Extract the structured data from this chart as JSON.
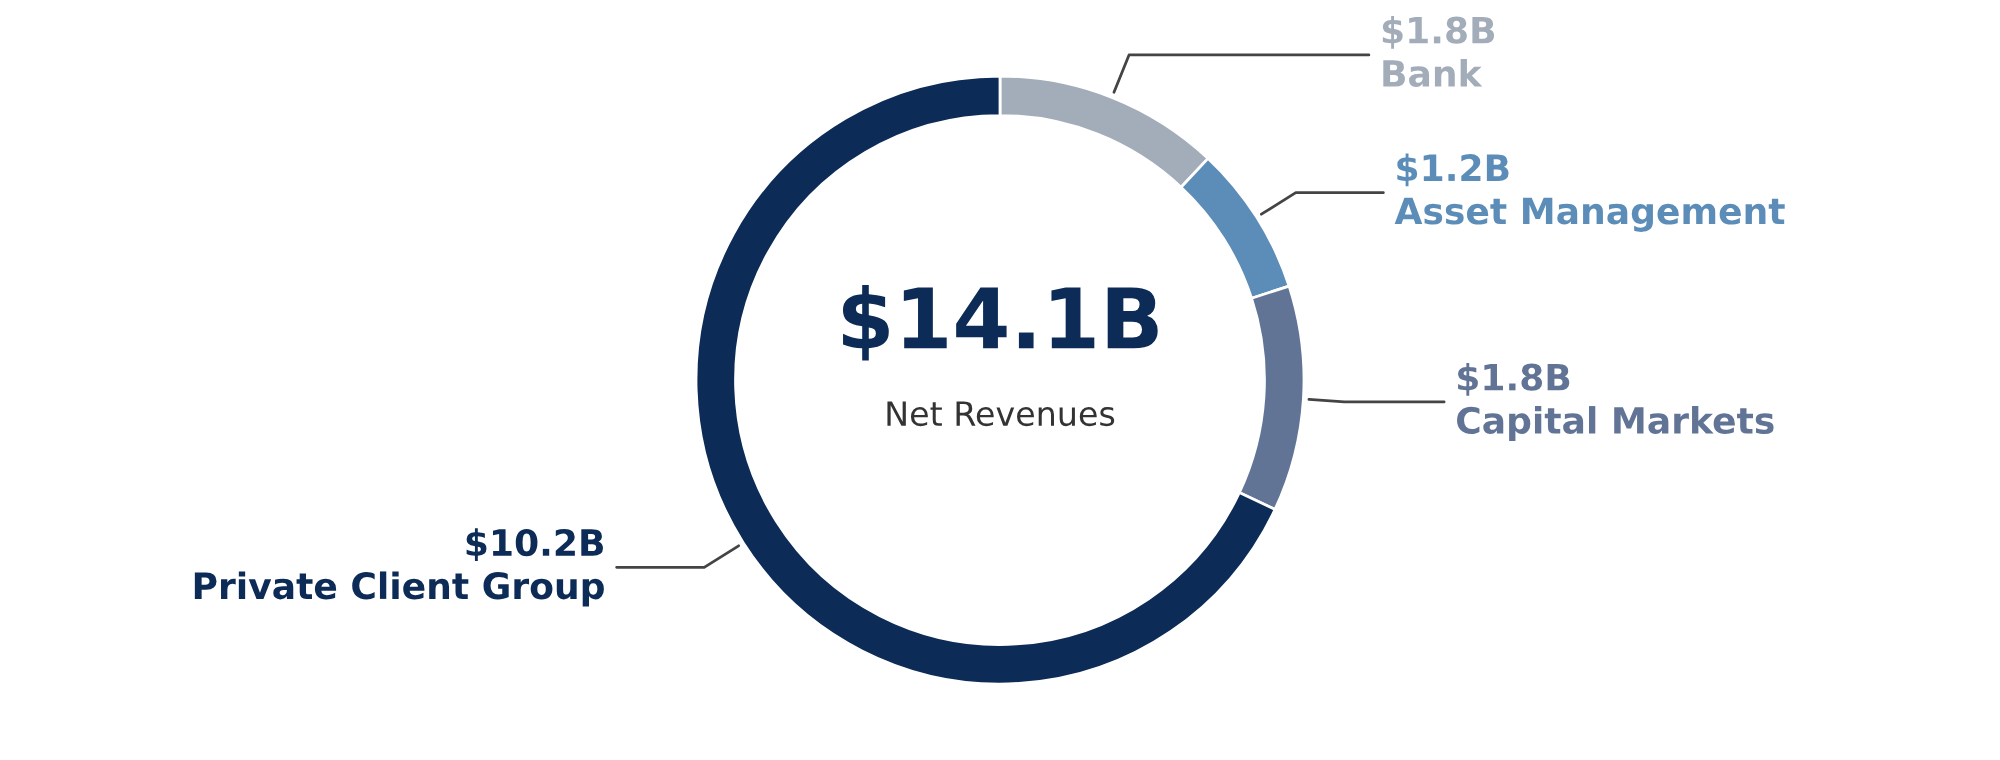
{
  "chart_data": {
    "type": "donut",
    "categories": [
      "Bank",
      "Asset Management",
      "Capital Markets",
      "Private Client Group"
    ],
    "values": [
      1.8,
      1.2,
      1.8,
      10.2
    ],
    "value_labels": [
      "$1.8B",
      "$1.2B",
      "$1.8B",
      "$10.2B"
    ],
    "colors": [
      "#a3acb9",
      "#5b8db8",
      "#627496",
      "#0c2b57"
    ],
    "annotations": [
      "$14.1B",
      "Net Revenues"
    ],
    "legend": false
  }
}
